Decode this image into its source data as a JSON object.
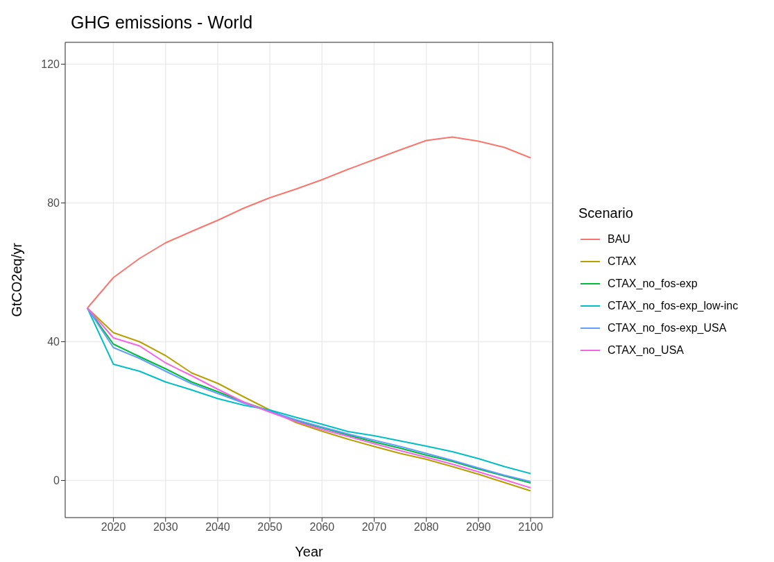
{
  "chart_data": {
    "type": "line",
    "title": "GHG emissions - World",
    "xlabel": "Year",
    "ylabel": "GtCO2eq/yr",
    "legend_title": "Scenario",
    "x": [
      2015,
      2020,
      2025,
      2030,
      2035,
      2040,
      2045,
      2050,
      2055,
      2060,
      2065,
      2070,
      2075,
      2080,
      2085,
      2090,
      2095,
      2100
    ],
    "series": [
      {
        "name": "BAU",
        "color": "#f8766d",
        "values": [
          49.7,
          58.5,
          64,
          68.5,
          71.8,
          75,
          78.5,
          81.5,
          84,
          86.7,
          89.7,
          92.5,
          95.3,
          98,
          99,
          97.8,
          96,
          93
        ]
      },
      {
        "name": "CTAX",
        "color": "#b79f00",
        "values": [
          49.7,
          42.6,
          40,
          36,
          31,
          28,
          24.1,
          20.3,
          16.7,
          14.2,
          11.9,
          9.8,
          7.8,
          6.1,
          4.0,
          1.8,
          -0.6,
          -3.0
        ]
      },
      {
        "name": "CTAX_no_fos-exp",
        "color": "#00ba38",
        "values": [
          49.7,
          39.3,
          35.7,
          32.2,
          28.4,
          25.6,
          22.6,
          20,
          17.2,
          15.2,
          13.1,
          11.1,
          9.3,
          7.3,
          5.5,
          3.3,
          1.3,
          -0.7
        ]
      },
      {
        "name": "CTAX_no_fos-exp_low-inc",
        "color": "#00bfc4",
        "values": [
          49.7,
          33.5,
          31.5,
          28.4,
          26.1,
          23.6,
          21.7,
          20.3,
          18.2,
          16.2,
          14.1,
          12.9,
          11.4,
          9.9,
          8.3,
          6.3,
          4.0,
          2.0
        ]
      },
      {
        "name": "CTAX_no_fos-exp_USA",
        "color": "#619cff",
        "values": [
          49.7,
          38.3,
          35.2,
          31.5,
          27.9,
          25.1,
          22.3,
          19.9,
          17.5,
          15.4,
          13.4,
          11.6,
          9.8,
          7.8,
          5.8,
          3.6,
          1.5,
          -0.3
        ]
      },
      {
        "name": "CTAX_no_USA",
        "color": "#f564e3",
        "values": [
          49.7,
          41.1,
          38.8,
          33.9,
          30.2,
          26.3,
          22.6,
          19.7,
          17.0,
          14.7,
          12.7,
          10.6,
          8.6,
          6.7,
          4.7,
          2.5,
          0.2,
          -2.1
        ]
      }
    ],
    "xlim": [
      2010.75,
      2104.25
    ],
    "xticks": [
      2020,
      2030,
      2040,
      2050,
      2060,
      2070,
      2080,
      2090,
      2100
    ],
    "ylim": [
      -10.7,
      126.3
    ],
    "yticks": [
      0,
      40,
      80,
      120
    ],
    "grid": true,
    "legend": "right",
    "marker": "none",
    "line_style": "solid"
  }
}
